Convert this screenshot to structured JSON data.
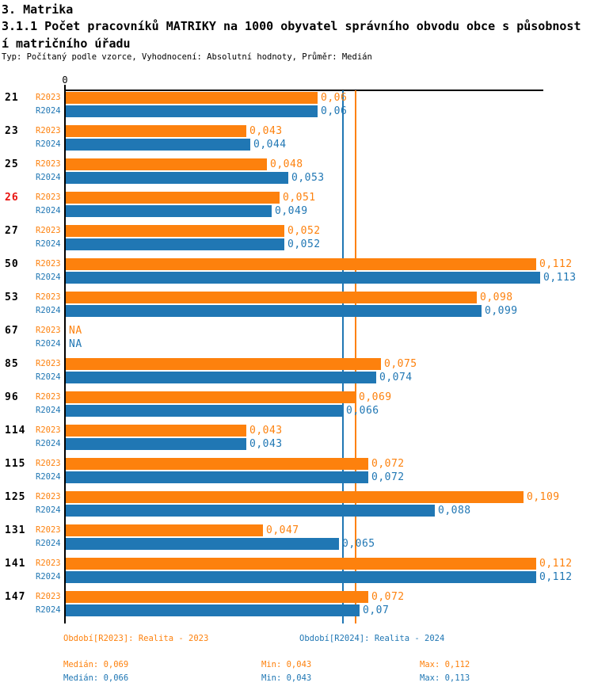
{
  "header": {
    "title": "3. Matrika",
    "subtitle_line1": "3.1.1 Počet pracovníků MATRIKY na 1000 obyvatel správního obvodu obce s působnost",
    "subtitle_line2": "í matričního úřadu",
    "meta": "Typ: Počítaný podle vzorce, Vyhodnocení: Absolutní hodnoty, Průměr: Medián"
  },
  "colors": {
    "r2023_orange": "#FD810D",
    "r2024_blue": "#2077B4",
    "highlight_red": "#E8110D",
    "axis_black": "#000000"
  },
  "chart_data": {
    "type": "bar",
    "orientation": "horizontal",
    "value_axis": {
      "min": 0,
      "approx_max": 0.114,
      "tick_labels": [
        "0"
      ],
      "grid": false
    },
    "categories": [
      "21",
      "23",
      "25",
      "26",
      "27",
      "50",
      "53",
      "67",
      "85",
      "96",
      "114",
      "115",
      "125",
      "131",
      "141",
      "147"
    ],
    "highlighted_category": "26",
    "series": [
      {
        "name": "R2023",
        "color": "#FD810D",
        "legend": "Období[R2023]: Realita - 2023",
        "values": [
          0.06,
          0.043,
          0.048,
          0.051,
          0.052,
          0.112,
          0.098,
          null,
          0.075,
          0.069,
          0.043,
          0.072,
          0.109,
          0.047,
          0.112,
          0.072
        ],
        "labels": [
          "0,06",
          "0,043",
          "0,048",
          "0,051",
          "0,052",
          "0,112",
          "0,098",
          "NA",
          "0,075",
          "0,069",
          "0,043",
          "0,072",
          "0,109",
          "0,047",
          "0,112",
          "0,072"
        ],
        "median": 0.069,
        "min": 0.043,
        "max": 0.112,
        "median_label": "Medián: 0,069",
        "min_label": "Min: 0,043",
        "max_label": "Max: 0,112"
      },
      {
        "name": "R2024",
        "color": "#2077B4",
        "legend": "Období[R2024]: Realita - 2024",
        "values": [
          0.06,
          0.044,
          0.053,
          0.049,
          0.052,
          0.113,
          0.099,
          null,
          0.074,
          0.066,
          0.043,
          0.072,
          0.088,
          0.065,
          0.112,
          0.07
        ],
        "labels": [
          "0,06",
          "0,044",
          "0,053",
          "0,049",
          "0,052",
          "0,113",
          "0,099",
          "NA",
          "0,074",
          "0,066",
          "0,043",
          "0,072",
          "0,088",
          "0,065",
          "0,112",
          "0,07"
        ],
        "median": 0.066,
        "min": 0.043,
        "max": 0.113,
        "median_label": "Medián: 0,066",
        "min_label": "Min: 0,043",
        "max_label": "Max: 0,113"
      }
    ],
    "reference_lines": [
      {
        "series": "R2023",
        "value": 0.069,
        "color": "#FD810D"
      },
      {
        "series": "R2024",
        "value": 0.066,
        "color": "#2077B4"
      }
    ]
  }
}
